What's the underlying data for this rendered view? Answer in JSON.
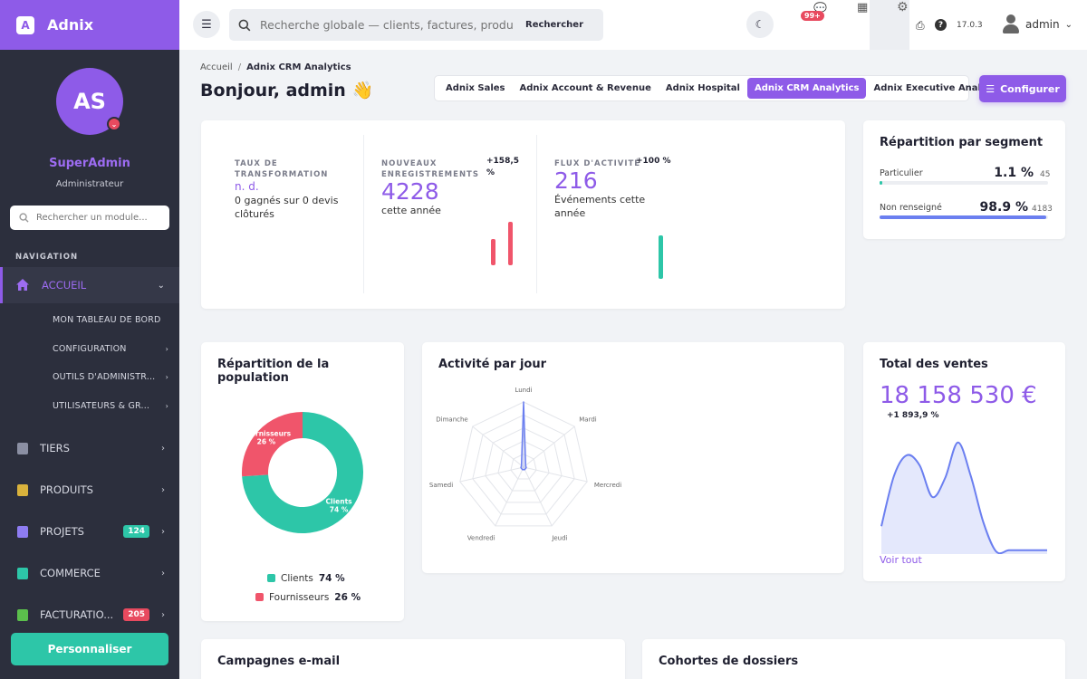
{
  "app": {
    "name": "Adnix",
    "logo_letter": "A"
  },
  "profile": {
    "initials": "AS",
    "name": "SuperAdmin",
    "role": "Administrateur"
  },
  "sidebar": {
    "search_placeholder": "Rechercher un module...",
    "nav_title": "NAVIGATION",
    "active_item": {
      "label": "ACCUEIL",
      "icon": "home-icon"
    },
    "sub_items": [
      {
        "label": "MON TABLEAU DE BORD",
        "has_children": false
      },
      {
        "label": "CONFIGURATION",
        "has_children": true
      },
      {
        "label": "OUTILS D'ADMINISTR...",
        "has_children": true
      },
      {
        "label": "UTILISATEURS & GR...",
        "has_children": true
      }
    ],
    "items": [
      {
        "label": "TIERS",
        "icon": "building-icon",
        "color": "#8b8fa3"
      },
      {
        "label": "PRODUITS",
        "icon": "box-icon",
        "color": "#d9b23c"
      },
      {
        "label": "PROJETS",
        "icon": "project-icon",
        "badge": "124",
        "badge_color": "#2dc6a8",
        "color": "#8e7cf2"
      },
      {
        "label": "COMMERCE",
        "icon": "briefcase-icon",
        "color": "#2dc6a8"
      },
      {
        "label": "FACTURATIO...",
        "icon": "invoice-icon",
        "badge": "205",
        "badge_color": "#e84a5f",
        "color": "#5bbf4c"
      }
    ],
    "customize_label": "Personnaliser"
  },
  "topbar": {
    "search_placeholder": "Recherche globale — clients, factures, produits",
    "search_button": "Rechercher",
    "messages_badge": "99+",
    "version": "17.0.3",
    "user": "admin"
  },
  "header": {
    "breadcrumb": [
      "Accueil",
      "Adnix CRM Analytics"
    ],
    "title": "Bonjour, admin 👋",
    "tabs": [
      {
        "label": "Adnix Sales",
        "active": false
      },
      {
        "label": "Adnix Account & Revenue",
        "active": false
      },
      {
        "label": "Adnix Hospital",
        "active": false
      },
      {
        "label": "Adnix CRM Analytics",
        "active": true
      },
      {
        "label": "Adnix Executive Analytics",
        "active": false
      }
    ],
    "configure_label": "Configurer"
  },
  "kpis": {
    "conversion": {
      "label": "TAUX DE TRANSFORMATION",
      "value": "n. d.",
      "sub": "0 gagnés sur 0 devis clôturés"
    },
    "registrations": {
      "label": "NOUVEAUX ENREGISTREMENTS",
      "value": "4228",
      "sub": "cette année",
      "delta": "+158,5 %",
      "bars": [
        0.6,
        1.0
      ],
      "bar_color": "#f0556b"
    },
    "activity": {
      "label": "FLUX D'ACTIVITÉ",
      "value": "216",
      "sub": "Événements cette année",
      "delta": "+100 %",
      "bars": [
        1.0
      ],
      "bar_color": "#2dc6a8"
    }
  },
  "segments": {
    "title": "Répartition par segment",
    "rows": [
      {
        "label": "Particulier",
        "pct": "1.1 %",
        "count": "45",
        "fill": 0.011,
        "color": "#2dc6a8"
      },
      {
        "label": "Non renseigné",
        "pct": "98.9 %",
        "count": "4183",
        "fill": 0.989,
        "color": "#6b7ff0"
      }
    ]
  },
  "population": {
    "title": "Répartition de la population",
    "chart_data": {
      "type": "pie",
      "categories": [
        "Clients",
        "Fournisseurs"
      ],
      "values": [
        74,
        26
      ],
      "colors": [
        "#2dc6a8",
        "#f0556b"
      ],
      "slice_labels": [
        "Clients",
        "Fournisseurs"
      ],
      "slice_pcts": [
        "74 %",
        "26 %"
      ]
    },
    "legend": [
      {
        "label": "Clients",
        "pct": "74 %",
        "color": "#2dc6a8"
      },
      {
        "label": "Fournisseurs",
        "pct": "26 %",
        "color": "#f0556b"
      }
    ]
  },
  "activity_day": {
    "title": "Activité par jour",
    "chart_data": {
      "type": "radar",
      "categories": [
        "Lundi",
        "Mardi",
        "Mercredi",
        "Jeudi",
        "Vendredi",
        "Samedi",
        "Dimanche"
      ],
      "values": [
        216,
        0,
        0,
        0,
        0,
        0,
        0
      ],
      "max": 216,
      "color": "#6b7ff0"
    }
  },
  "sales": {
    "title": "Total des ventes",
    "value": "18 158 530 €",
    "delta": "+1 893,9 %",
    "link": "Voir tout",
    "chart_data": {
      "type": "area",
      "values": [
        0.22,
        0.62,
        0.78,
        0.7,
        0.45,
        0.6,
        0.88,
        0.62,
        0.25,
        0.02,
        0.03,
        0.03,
        0.03,
        0.03
      ],
      "color": "#6b7ff0"
    }
  },
  "bottom_cards": {
    "campaigns": "Campagnes e-mail",
    "cohorts": "Cohortes de dossiers"
  }
}
